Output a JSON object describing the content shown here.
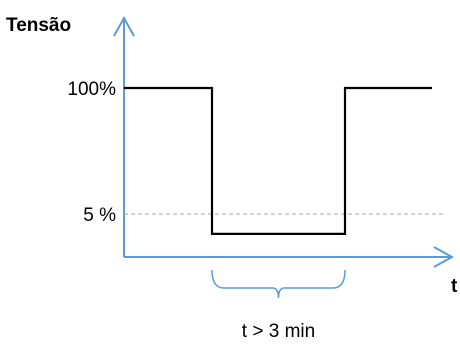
{
  "chart_data": {
    "type": "line",
    "title": "",
    "ylabel": "Tensão",
    "xlabel": "t",
    "y_ticks": [
      {
        "label": "100%",
        "value": 100
      },
      {
        "label": "5 %",
        "value": 5
      }
    ],
    "series": [
      {
        "points": [
          {
            "x": 0,
            "y": 100
          },
          {
            "x": 1,
            "y": 100
          },
          {
            "x": 1,
            "y": -10
          },
          {
            "x": 2,
            "y": -10
          },
          {
            "x": 2,
            "y": 100
          },
          {
            "x": 3,
            "y": 100
          }
        ]
      }
    ],
    "reference_lines": [
      {
        "y": 5,
        "style": "dashed"
      }
    ],
    "annotation": {
      "text": "t > 3 min",
      "from_x": 1,
      "to_x": 2
    },
    "grid": false,
    "legend": "none",
    "colors": {
      "axis": "#5b9bd5",
      "series": "#000000",
      "reference": "#a6a6a6",
      "brace": "#5b9bd5"
    }
  }
}
